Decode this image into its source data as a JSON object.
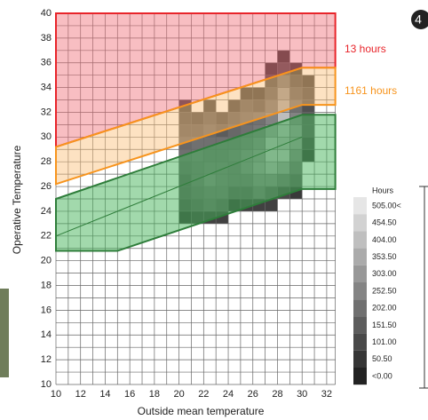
{
  "chart_data": {
    "type": "heatmap",
    "xlabel": "Outside mean temperature",
    "ylabel": "Operative Temperature",
    "xlim": [
      10,
      32.7
    ],
    "ylim": [
      10,
      40
    ],
    "xticks": [
      10,
      12,
      14,
      16,
      18,
      20,
      22,
      24,
      26,
      28,
      30,
      32
    ],
    "yticks": [
      10,
      12,
      14,
      16,
      18,
      20,
      22,
      24,
      26,
      28,
      30,
      32,
      34,
      36,
      38,
      40
    ],
    "xminor": [
      11,
      13,
      15,
      17,
      19,
      21,
      23,
      25,
      27,
      29,
      31
    ],
    "yminor": [
      11,
      13,
      15,
      17,
      19,
      21,
      23,
      25,
      27,
      29,
      31,
      33,
      35,
      37,
      39
    ],
    "grid": true,
    "columns": [
      {
        "x": 20,
        "y0": 23,
        "values": [
          60,
          120,
          150,
          150,
          180,
          200,
          180,
          150,
          120,
          80
        ]
      },
      {
        "x": 21,
        "y0": 23,
        "values": [
          80,
          150,
          180,
          200,
          200,
          220,
          200,
          150,
          100
        ]
      },
      {
        "x": 22,
        "y0": 23,
        "values": [
          80,
          180,
          200,
          250,
          220,
          200,
          200,
          180,
          150,
          80
        ]
      },
      {
        "x": 23,
        "y0": 23,
        "values": [
          80,
          150,
          200,
          220,
          220,
          200,
          200,
          150,
          100
        ]
      },
      {
        "x": 24,
        "y0": 24,
        "values": [
          60,
          150,
          200,
          200,
          220,
          200,
          180,
          150,
          80
        ]
      },
      {
        "x": 25,
        "y0": 24,
        "values": [
          80,
          150,
          200,
          250,
          250,
          220,
          200,
          180,
          150,
          60
        ]
      },
      {
        "x": 26,
        "y0": 24,
        "values": [
          80,
          200,
          250,
          300,
          280,
          250,
          220,
          200,
          120,
          60
        ]
      },
      {
        "x": 27,
        "y0": 24,
        "values": [
          80,
          150,
          250,
          350,
          400,
          380,
          300,
          250,
          200,
          150,
          100,
          40
        ]
      },
      {
        "x": 28,
        "y0": 25,
        "values": [
          100,
          200,
          300,
          400,
          350,
          380,
          400,
          350,
          300,
          200,
          100,
          30
        ]
      },
      {
        "x": 29,
        "y0": 25,
        "values": [
          60,
          150,
          200,
          250,
          300,
          300,
          250,
          200,
          150,
          100,
          40
        ]
      },
      {
        "x": 30,
        "y0": 28,
        "values": [
          60,
          100,
          150,
          150,
          120,
          100,
          60
        ]
      }
    ],
    "bands": [
      {
        "color": "#e8242a",
        "fill": "rgba(240,110,120,0.45)",
        "x": [
          10,
          32.7,
          32.7,
          30,
          10
        ],
        "y": [
          40,
          40,
          35.6,
          35.6,
          29.2
        ]
      },
      {
        "color": "#f7941d",
        "fill": "rgba(250,190,120,0.45)",
        "x": [
          10,
          30,
          32.7,
          32.7,
          30,
          10
        ],
        "y": [
          29.2,
          35.6,
          35.6,
          32.6,
          32.6,
          26.2
        ]
      },
      {
        "color": "#2e7d3a",
        "fill": "rgba(70,180,90,0.5)",
        "x": [
          10,
          30,
          32.7,
          32.7,
          30,
          15,
          10
        ],
        "y": [
          25,
          31.8,
          31.8,
          25.8,
          25.8,
          20.8,
          20.8
        ]
      },
      {
        "color": "#2e7d3a",
        "x": [
          10,
          30
        ],
        "y": [
          22,
          30
        ]
      }
    ],
    "annotations": [
      {
        "text": "13 hours",
        "color": "#e8242a"
      },
      {
        "text": "1161 hours",
        "color": "#f7941d"
      }
    ],
    "colorbar": {
      "title": "Hours",
      "ticks": [
        {
          "value": 505,
          "label": "505.00<"
        },
        {
          "value": 454.5,
          "label": "454.50"
        },
        {
          "value": 404,
          "label": "404.00"
        },
        {
          "value": 353.5,
          "label": "353.50"
        },
        {
          "value": 303,
          "label": "303.00"
        },
        {
          "value": 252.5,
          "label": "252.50"
        },
        {
          "value": 202,
          "label": "202.00"
        },
        {
          "value": 151.5,
          "label": "151.50"
        },
        {
          "value": 101,
          "label": "101.00"
        },
        {
          "value": 50.5,
          "label": "50.50"
        },
        {
          "value": 0,
          "label": "<0.00"
        }
      ]
    },
    "panel_label": "4"
  }
}
